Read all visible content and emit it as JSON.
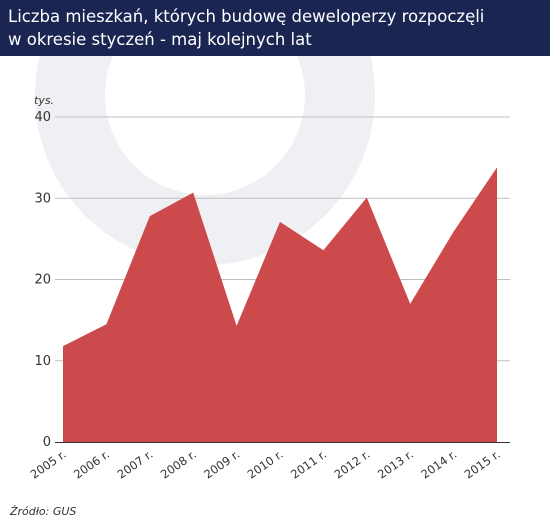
{
  "header": {
    "title": "Liczba mieszkań, których budowę deweloperzy rozpoczęli\nw okresie styczeń - maj kolejnych lat"
  },
  "source": "Źródło: GUS",
  "colors": {
    "header_bg": "#1b2552",
    "area_fill": "#cd4a4c",
    "grid": "#bfbfbf",
    "text": "#333333"
  },
  "chart_data": {
    "type": "area",
    "title": "Liczba mieszkań, których budowę deweloperzy rozpoczęli w okresie styczeń - maj kolejnych lat",
    "xlabel": "",
    "ylabel": "tys.",
    "categories": [
      "2005 r.",
      "2006 r.",
      "2007 r.",
      "2008 r.",
      "2009 r.",
      "2010 r.",
      "2011 r.",
      "2012 r.",
      "2013 r.",
      "2014 r.",
      "2015 r."
    ],
    "values": [
      11.8,
      14.5,
      27.8,
      30.7,
      14.3,
      27.1,
      23.6,
      30.1,
      17.0,
      25.9,
      33.8
    ],
    "yticks": [
      0,
      10,
      20,
      30,
      40
    ],
    "ylim": [
      0,
      40
    ],
    "grid": true,
    "legend": "none"
  }
}
